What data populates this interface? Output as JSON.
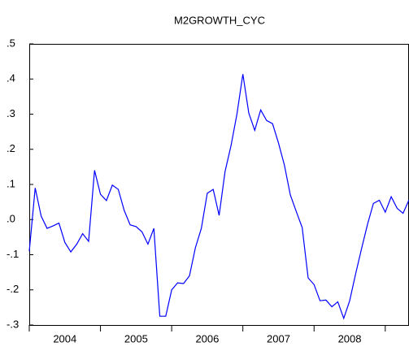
{
  "chart_data": {
    "type": "line",
    "title": "M2GROWTH_CYC",
    "categories": [
      null,
      null,
      null,
      null,
      null,
      null,
      "2004",
      null,
      null,
      null,
      null,
      null,
      null,
      null,
      null,
      null,
      null,
      null,
      "2005",
      null,
      null,
      null,
      null,
      null,
      null,
      null,
      null,
      null,
      null,
      null,
      "2006",
      null,
      null,
      null,
      null,
      null,
      null,
      null,
      null,
      null,
      null,
      null,
      "2007",
      null,
      null,
      null,
      null,
      null,
      null,
      null,
      null,
      null,
      null,
      null,
      "2008",
      null,
      null,
      null,
      null,
      null,
      null,
      null,
      null,
      null,
      null
    ],
    "series": [
      {
        "color": "#0000ff",
        "values": [
          -0.09,
          0.09,
          0.01,
          -0.025,
          -0.018,
          -0.01,
          -0.065,
          -0.092,
          -0.07,
          -0.04,
          -0.062,
          0.14,
          0.072,
          0.054,
          0.098,
          0.086,
          0.026,
          -0.015,
          -0.02,
          -0.035,
          -0.07,
          -0.025,
          -0.275,
          -0.275,
          -0.2,
          -0.18,
          -0.182,
          -0.16,
          -0.08,
          -0.025,
          0.075,
          0.086,
          0.012,
          0.137,
          0.21,
          0.3,
          0.414,
          0.303,
          0.254,
          0.312,
          0.282,
          0.273,
          0.218,
          0.155,
          0.07,
          0.023,
          -0.023,
          -0.166,
          -0.185,
          -0.231,
          -0.229,
          -0.248,
          -0.234,
          -0.281,
          -0.231,
          -0.155,
          -0.083,
          -0.014,
          0.046,
          0.055,
          0.021,
          0.065,
          0.032,
          0.018,
          0.056
        ]
      }
    ],
    "ylim": [
      -0.3,
      0.5
    ],
    "yticks": [
      {
        "value": -0.3,
        "label": "-.3"
      },
      {
        "value": -0.2,
        "label": "-.2"
      },
      {
        "value": -0.1,
        "label": "-.1"
      },
      {
        "value": 0,
        "label": ".0"
      },
      {
        "value": 0.1,
        "label": ".1"
      },
      {
        "value": 0.2,
        "label": ".2"
      },
      {
        "value": 0.3,
        "label": ".3"
      },
      {
        "value": 0.4,
        "label": ".4"
      },
      {
        "value": 0.5,
        "label": ".5"
      }
    ],
    "grid": false
  }
}
